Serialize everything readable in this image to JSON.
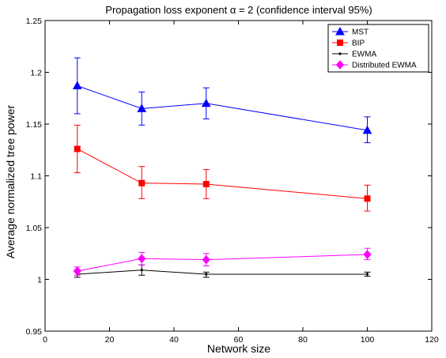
{
  "chart_data": {
    "type": "line",
    "title": "Propagation loss exponent α = 2 (confidence interval 95%)",
    "xlabel": "Network size",
    "ylabel": "Average normalized tree power",
    "xlim": [
      0,
      120
    ],
    "ylim": [
      0.95,
      1.25
    ],
    "xticks": [
      0,
      20,
      40,
      60,
      80,
      100,
      120
    ],
    "yticks": [
      0.95,
      1,
      1.05,
      1.1,
      1.15,
      1.2,
      1.25
    ],
    "xtick_labels": [
      "0",
      "20",
      "40",
      "60",
      "80",
      "100",
      "120"
    ],
    "ytick_labels": [
      "0.95",
      "1",
      "1.05",
      "1.1",
      "1.15",
      "1.2",
      "1.25"
    ],
    "grid": false,
    "legend_position": "top-right",
    "x": [
      10,
      30,
      50,
      100
    ],
    "series": [
      {
        "name": "MST",
        "color": "#0000ff",
        "marker": "triangle",
        "values": [
          1.187,
          1.165,
          1.17,
          1.144
        ],
        "err_low": [
          1.16,
          1.149,
          1.155,
          1.132
        ],
        "err_high": [
          1.214,
          1.181,
          1.185,
          1.157
        ]
      },
      {
        "name": "BIP",
        "color": "#ff0000",
        "marker": "square",
        "values": [
          1.126,
          1.093,
          1.092,
          1.078
        ],
        "err_low": [
          1.103,
          1.078,
          1.078,
          1.066
        ],
        "err_high": [
          1.149,
          1.109,
          1.106,
          1.091
        ]
      },
      {
        "name": "EWMA",
        "color": "#000000",
        "marker": "point",
        "values": [
          1.005,
          1.009,
          1.005,
          1.005
        ],
        "err_low": [
          1.002,
          1.004,
          1.002,
          1.003
        ],
        "err_high": [
          1.008,
          1.014,
          1.007,
          1.007
        ]
      },
      {
        "name": "Distributed EWMA",
        "color": "#ff00ff",
        "marker": "diamond",
        "values": [
          1.008,
          1.02,
          1.019,
          1.024
        ],
        "err_low": [
          1.004,
          1.014,
          1.013,
          1.019
        ],
        "err_high": [
          1.012,
          1.026,
          1.025,
          1.03
        ]
      }
    ]
  }
}
